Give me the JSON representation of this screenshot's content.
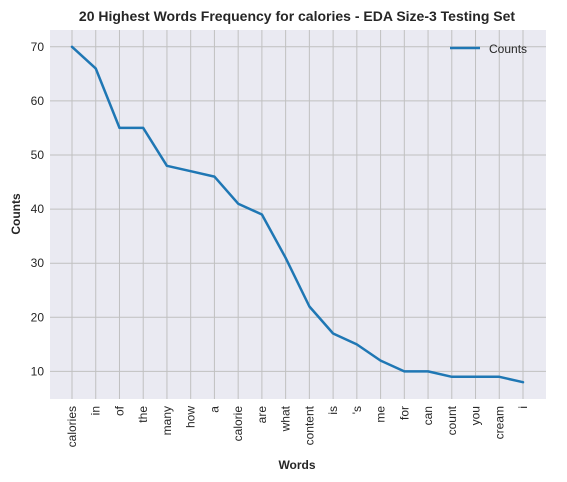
{
  "chart_data": {
    "type": "line",
    "title": "20 Highest Words Frequency for calories - EDA Size-3 Testing Set",
    "xlabel": "Words",
    "ylabel": "Counts",
    "categories": [
      "calories",
      "in",
      "of",
      "the",
      "many",
      "how",
      "a",
      "calorie",
      "are",
      "what",
      "content",
      "is",
      "'s",
      "me",
      "for",
      "can",
      "count",
      "you",
      "cream",
      "i"
    ],
    "series": [
      {
        "name": "Counts",
        "values": [
          70,
          66,
          55,
          55,
          48,
          47,
          46,
          41,
          39,
          31,
          22,
          17,
          15,
          12,
          10,
          10,
          9,
          9,
          9,
          8
        ]
      }
    ],
    "ylim": [
      4.9,
      73.1
    ],
    "yticks": [
      10,
      20,
      30,
      40,
      50,
      60,
      70
    ],
    "grid": true,
    "legend_position": "top-right",
    "colors": {
      "line": "#1f77b4",
      "background": "#eaeaf2",
      "grid": "#c0c0c0"
    }
  }
}
